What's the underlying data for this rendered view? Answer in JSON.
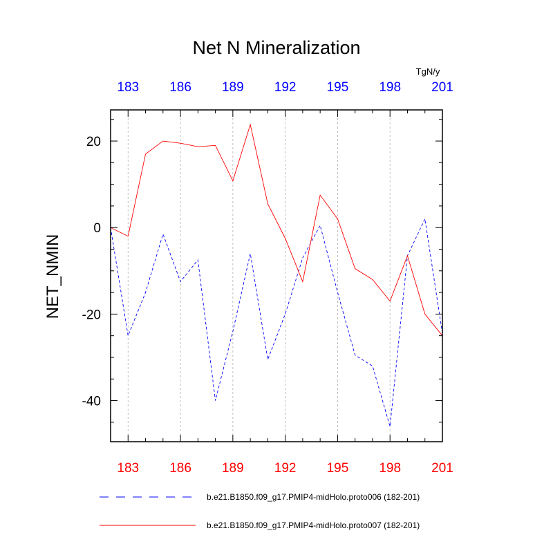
{
  "chart_data": {
    "type": "line",
    "title": "Net N Mineralization",
    "units": "TgN/y",
    "ylabel": "NET_NMIN",
    "xlabel": "",
    "x": [
      182,
      183,
      184,
      185,
      186,
      187,
      188,
      189,
      190,
      191,
      192,
      193,
      194,
      195,
      196,
      197,
      198,
      199,
      200,
      201
    ],
    "xlim": [
      182,
      201
    ],
    "ylim": [
      -49.5,
      27.2
    ],
    "grid": "vertical dashed at labeled x ticks",
    "bottom_axis": {
      "ticks": [
        183,
        186,
        189,
        192,
        195,
        198,
        201
      ],
      "labels": [
        "183",
        "186",
        "189",
        "192",
        "195",
        "198",
        "201"
      ],
      "color": "#ff0000"
    },
    "top_axis": {
      "ticks": [
        183,
        186,
        189,
        192,
        195,
        198,
        201
      ],
      "labels": [
        "183",
        "186",
        "189",
        "192",
        "195",
        "198",
        "201"
      ],
      "color": "#0000ff"
    },
    "y_ticks": [
      20,
      0,
      -20,
      -40
    ],
    "y_tick_labels": [
      "20",
      "0",
      "-20",
      "-40"
    ],
    "series": [
      {
        "name": "b.e21.B1850.f09_g17.PMIP4-midHolo.proto006 (182-201)",
        "color": "#0000ff",
        "dash": "dashed",
        "values": [
          0.0,
          -25.0,
          -15.0,
          -1.5,
          -12.5,
          -7.5,
          -40.0,
          -24.0,
          -6.0,
          -30.5,
          -20.0,
          -7.0,
          0.5,
          -15.0,
          -29.5,
          -32.0,
          -46.0,
          -6.5,
          2.0,
          -24.5
        ]
      },
      {
        "name": "b.e21.B1850.f09_g17.PMIP4-midHolo.proto007 (182-201)",
        "color": "#ff0000",
        "dash": "solid",
        "values": [
          0.0,
          -2.0,
          17.0,
          20.0,
          19.5,
          18.7,
          19.0,
          10.8,
          23.8,
          5.5,
          -2.5,
          -12.5,
          7.5,
          2.0,
          -9.5,
          -12.0,
          -17.0,
          -6.5,
          -20.0,
          -25.0
        ]
      }
    ]
  }
}
